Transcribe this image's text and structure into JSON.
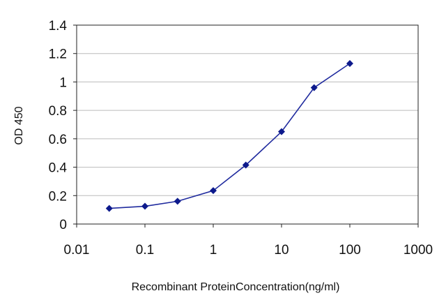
{
  "chart_data": {
    "type": "line",
    "title": "",
    "xlabel": "Recombinant ProteinConcentration(ng/ml)",
    "ylabel": "OD 450",
    "x_scale": "log",
    "xlim": [
      0.01,
      1000
    ],
    "ylim": [
      0,
      1.4
    ],
    "x_ticks": [
      "0.01",
      "0.1",
      "1",
      "10",
      "100",
      "1000"
    ],
    "y_ticks": [
      "0",
      "0.2",
      "0.4",
      "0.6",
      "0.8",
      "1",
      "1.2",
      "1.4"
    ],
    "grid": "horizontal",
    "legend": "none",
    "series": [
      {
        "x": [
          0.03,
          0.1,
          0.3,
          1,
          3,
          10,
          30,
          100
        ],
        "y": [
          0.11,
          0.125,
          0.16,
          0.235,
          0.415,
          0.65,
          0.96,
          1.13
        ]
      }
    ],
    "colors": {
      "line": "#1f2a9e",
      "marker": "#0d1a8c",
      "grid": "#bbbbbb",
      "axis": "#222222"
    }
  }
}
